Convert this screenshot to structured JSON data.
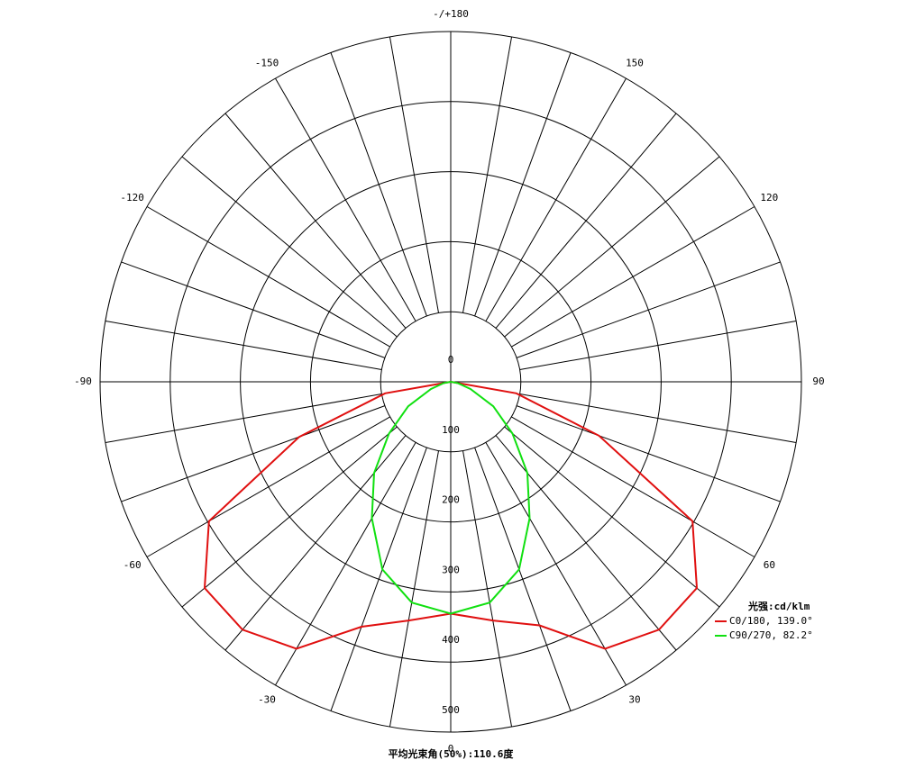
{
  "chart_data": {
    "type": "polar",
    "theta": [
      -90,
      -80,
      -70,
      -60,
      -50,
      -40,
      -30,
      -20,
      -10,
      0,
      10,
      20,
      30,
      40,
      50,
      60,
      70,
      80,
      90
    ],
    "series": [
      {
        "name": "C0/180, 139.0°",
        "color": "#e01010",
        "values": [
          0,
          95,
          230,
          398,
          458,
          462,
          440,
          372,
          346,
          331,
          346,
          370,
          440,
          462,
          458,
          398,
          225,
          95,
          0
        ]
      },
      {
        "name": "C90/270, 82.2°",
        "color": "#10e010",
        "values": [
          0,
          10,
          30,
          70,
          115,
          170,
          225,
          285,
          320,
          331,
          320,
          285,
          225,
          170,
          115,
          70,
          30,
          10,
          0
        ]
      }
    ],
    "rlim": [
      0,
      500
    ],
    "rticks": [
      0,
      100,
      200,
      300,
      400,
      500
    ],
    "thetaticks": [
      {
        "value": 180,
        "label": "-/+180"
      },
      150,
      120,
      90,
      60,
      30,
      0,
      -30,
      -60,
      -90,
      -120,
      -150
    ],
    "legend_title": "光强:cd/klm",
    "caption": "平均光束角(50%):110.6度"
  }
}
